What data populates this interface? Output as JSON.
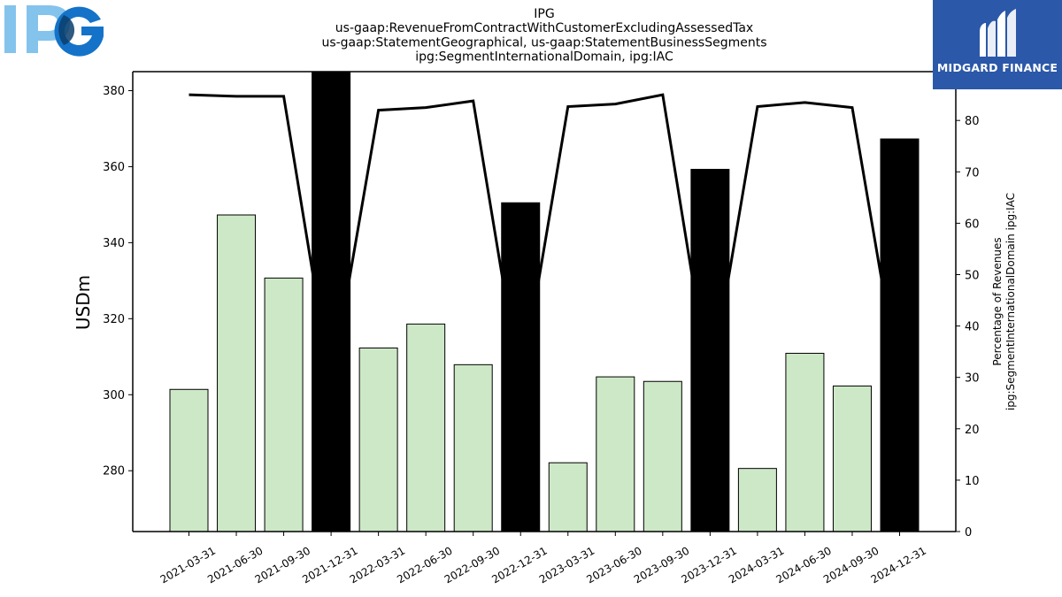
{
  "logos": {
    "company": "IPG",
    "brand": "MIDGARD FINANCE"
  },
  "chart_data": {
    "type": "bar",
    "title_lines": [
      "IPG",
      "us-gaap:RevenueFromContractWithCustomerExcludingAssessedTax",
      "us-gaap:StatementGeographical, us-gaap:StatementBusinessSegments",
      "ipg:SegmentInternationalDomain, ipg:IAC"
    ],
    "ylabel": "USDm",
    "y2label_lines": [
      "Percentage of Revenues",
      "ipg:SegmentInternationalDomain ipg:IAC"
    ],
    "categories": [
      "2021-03-31",
      "2021-06-30",
      "2021-09-30",
      "2021-12-31",
      "2022-03-31",
      "2022-06-30",
      "2022-09-30",
      "2022-12-31",
      "2023-03-31",
      "2023-06-30",
      "2023-09-30",
      "2023-12-31",
      "2024-03-31",
      "2024-06-30",
      "2024-09-30",
      "2024-12-31"
    ],
    "ylim": [
      264,
      385
    ],
    "y_ticks": [
      280,
      300,
      320,
      340,
      360,
      380
    ],
    "y2lim": [
      0,
      89.5
    ],
    "y2_ticks": [
      0,
      10,
      20,
      30,
      40,
      50,
      60,
      70,
      80
    ],
    "series": [
      {
        "axis": "left",
        "mark": "bar",
        "values": [
          301.4,
          347.3,
          330.7,
          385,
          312.3,
          318.6,
          307.9,
          350.5,
          282.1,
          304.7,
          303.5,
          359.3,
          280.6,
          310.9,
          302.3,
          367.3
        ],
        "q4_quarters": [
          "2021-12-31",
          "2022-12-31",
          "2023-12-31",
          "2024-12-31"
        ]
      },
      {
        "axis": "right",
        "mark": "line",
        "values": [
          85.0,
          84.7,
          84.7,
          28.5,
          82.0,
          82.5,
          83.8,
          28.0,
          82.7,
          83.2,
          85.0,
          28.2,
          82.7,
          83.5,
          82.5,
          28.5
        ]
      }
    ],
    "colors": {
      "bar": "#cde8c6",
      "bar_q4": "#000000",
      "bar_edge": "#000000",
      "line": "#000000"
    },
    "grid": false
  }
}
